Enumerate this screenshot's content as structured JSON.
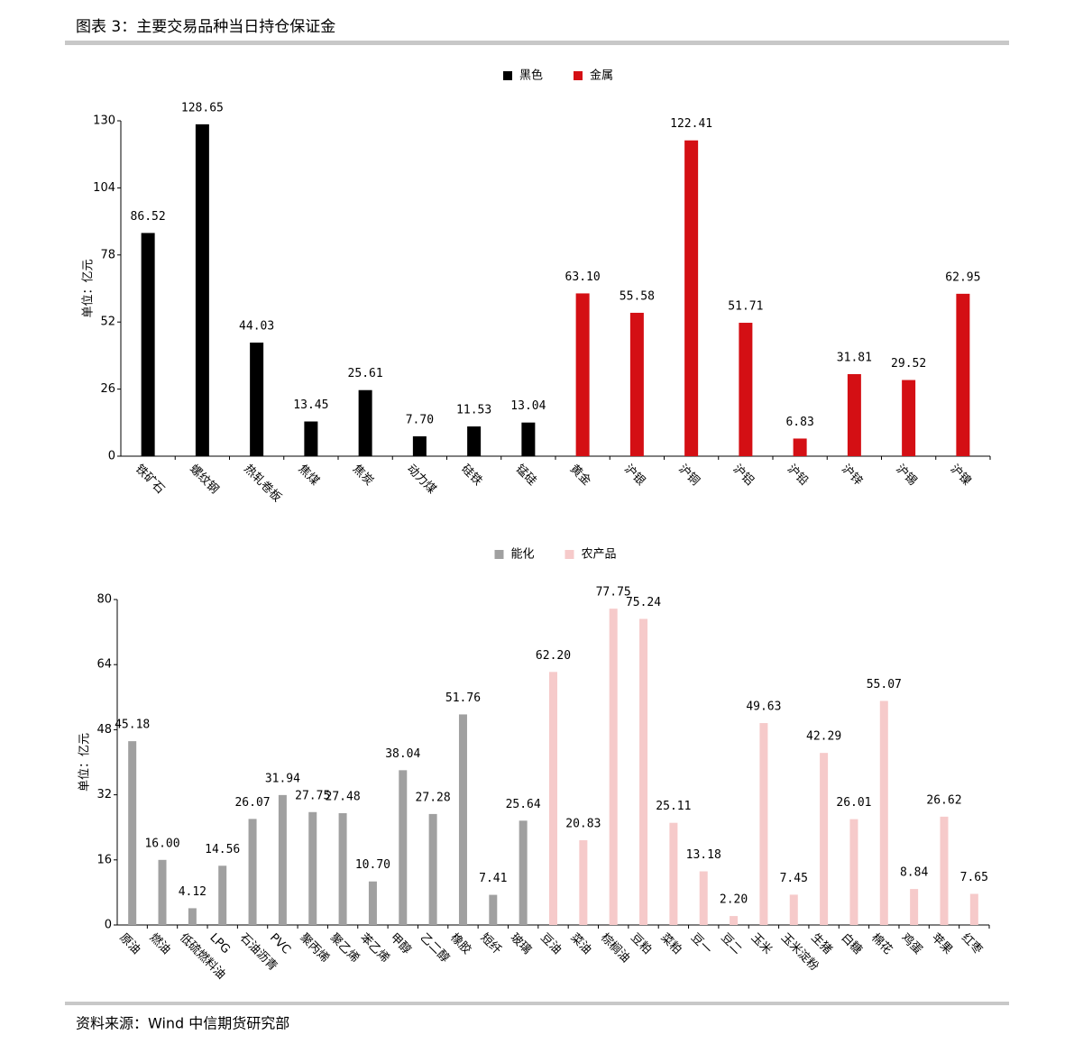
{
  "header": {
    "title": "图表 3：主要交易品种当日持仓保证金"
  },
  "footer": {
    "source": "资料来源：Wind 中信期货研究部"
  },
  "chart_data": [
    {
      "type": "bar",
      "y_label": "单位：亿元",
      "categories": [
        "铁矿石",
        "螺纹钢",
        "热轧卷板",
        "焦煤",
        "焦炭",
        "动力煤",
        "硅铁",
        "锰硅",
        "黄金",
        "沪银",
        "沪铜",
        "沪铝",
        "沪铅",
        "沪锌",
        "沪锡",
        "沪镍"
      ],
      "series": [
        {
          "name": "黑色",
          "color": "#000000",
          "values": [
            86.52,
            128.65,
            44.03,
            13.45,
            25.61,
            7.7,
            11.53,
            13.04,
            null,
            null,
            null,
            null,
            null,
            null,
            null,
            null
          ],
          "value_labels": [
            "86.52",
            "128.65",
            "44.03",
            "13.45",
            "25.61",
            "7.70",
            "11.53",
            "13.04",
            null,
            null,
            null,
            null,
            null,
            null,
            null,
            null
          ]
        },
        {
          "name": "金属",
          "color": "#d40f14",
          "values": [
            null,
            null,
            null,
            null,
            null,
            null,
            null,
            null,
            63.1,
            55.58,
            122.41,
            51.71,
            6.83,
            31.81,
            29.52,
            62.95
          ],
          "value_labels": [
            null,
            null,
            null,
            null,
            null,
            null,
            null,
            null,
            "63.10",
            "55.58",
            "122.41",
            "51.71",
            "6.83",
            "31.81",
            "29.52",
            "62.95"
          ]
        }
      ],
      "ylim": [
        0,
        130
      ],
      "yticks": [
        0,
        26,
        52,
        78,
        104,
        130
      ],
      "legend": "top"
    },
    {
      "type": "bar",
      "y_label": "单位：亿元",
      "categories": [
        "原油",
        "燃油",
        "低硫燃料油",
        "LPG",
        "石油沥青",
        "PVC",
        "聚丙烯",
        "聚乙烯",
        "苯乙烯",
        "甲醇",
        "乙二醇",
        "橡胶",
        "短纤",
        "玻璃",
        "豆油",
        "菜油",
        "棕榈油",
        "豆粕",
        "菜粕",
        "豆一",
        "豆二",
        "玉米",
        "玉米淀粉",
        "生猪",
        "白糖",
        "棉花",
        "鸡蛋",
        "苹果",
        "红枣"
      ],
      "series": [
        {
          "name": "能化",
          "color": "#a0a0a0",
          "values": [
            45.18,
            16.0,
            4.12,
            14.56,
            26.07,
            31.94,
            27.75,
            27.48,
            10.7,
            38.04,
            27.28,
            51.76,
            7.41,
            25.64,
            null,
            null,
            null,
            null,
            null,
            null,
            null,
            null,
            null,
            null,
            null,
            null,
            null,
            null,
            null
          ],
          "value_labels": [
            "45.18",
            "16.00",
            "4.12",
            "14.56",
            "26.07",
            "31.94",
            "27.75",
            "27.48",
            "10.70",
            "38.04",
            "27.28",
            "51.76",
            "7.41",
            "25.64",
            null,
            null,
            null,
            null,
            null,
            null,
            null,
            null,
            null,
            null,
            null,
            null,
            null,
            null,
            null
          ]
        },
        {
          "name": "农产品",
          "color": "#f6caca",
          "values": [
            null,
            null,
            null,
            null,
            null,
            null,
            null,
            null,
            null,
            null,
            null,
            null,
            null,
            null,
            62.2,
            20.83,
            77.75,
            75.24,
            25.11,
            13.18,
            2.2,
            49.63,
            7.45,
            42.29,
            26.01,
            55.07,
            8.84,
            26.62,
            7.65
          ],
          "value_labels": [
            null,
            null,
            null,
            null,
            null,
            null,
            null,
            null,
            null,
            null,
            null,
            null,
            null,
            null,
            "62.20",
            "20.83",
            "77.75",
            "75.24",
            "25.11",
            "13.18",
            "2.20",
            "49.63",
            "7.45",
            "42.29",
            "26.01",
            "55.07",
            "8.84",
            "26.62",
            "7.65"
          ]
        }
      ],
      "ylim": [
        0,
        80
      ],
      "yticks": [
        0,
        16,
        32,
        48,
        64,
        80
      ],
      "legend": "top"
    }
  ]
}
